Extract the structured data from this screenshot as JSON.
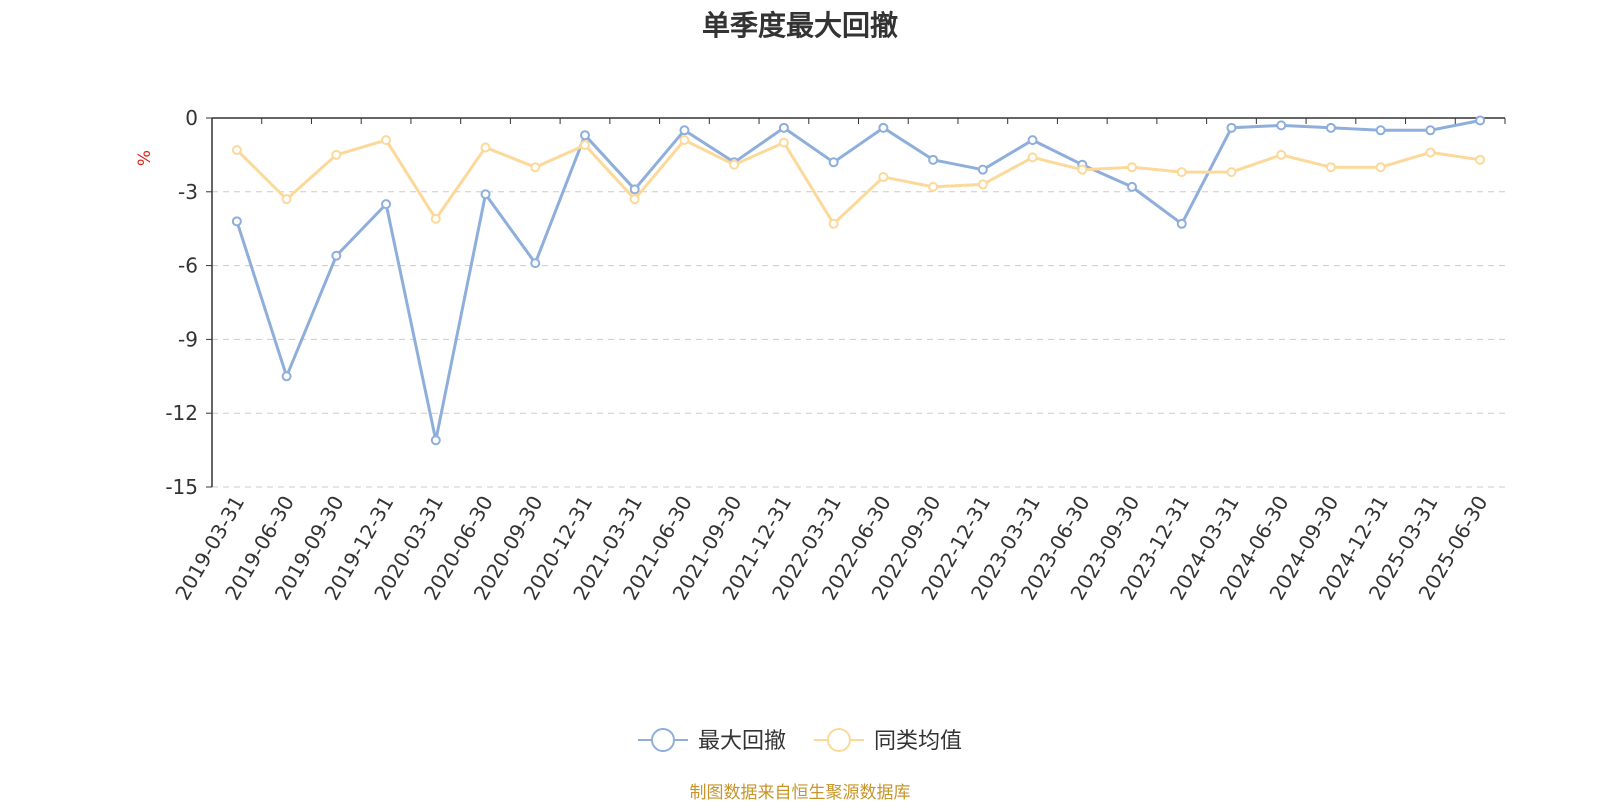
{
  "chart_data": {
    "type": "line",
    "title": "单季度最大回撤",
    "ylabel": "%",
    "ylim": [
      -15,
      0
    ],
    "yticks": [
      0,
      -3,
      -6,
      -9,
      -12,
      -15
    ],
    "grid": true,
    "legend_position": "bottom",
    "x": [
      "2019-03-31",
      "2019-06-30",
      "2019-09-30",
      "2019-12-31",
      "2020-03-31",
      "2020-06-30",
      "2020-09-30",
      "2020-12-31",
      "2021-03-31",
      "2021-06-30",
      "2021-09-30",
      "2021-12-31",
      "2022-03-31",
      "2022-06-30",
      "2022-09-30",
      "2022-12-31",
      "2023-03-31",
      "2023-06-30",
      "2023-09-30",
      "2023-12-31",
      "2024-03-31",
      "2024-06-30",
      "2024-09-30",
      "2024-12-31",
      "2025-03-31",
      "2025-06-30"
    ],
    "series": [
      {
        "name": "最大回撤",
        "color": "#8eaedb",
        "values": [
          -4.2,
          -10.5,
          -5.6,
          -3.5,
          -13.1,
          -3.1,
          -5.9,
          -0.7,
          -2.9,
          -0.5,
          -1.8,
          -0.4,
          -1.8,
          -0.4,
          -1.7,
          -2.1,
          -0.9,
          -1.9,
          -2.8,
          -4.3,
          -0.4,
          -0.3,
          -0.4,
          -0.5,
          -0.5,
          -0.1
        ]
      },
      {
        "name": "同类均值",
        "color": "#fcd99a",
        "values": [
          -1.3,
          -3.3,
          -1.5,
          -0.9,
          -4.1,
          -1.2,
          -2.0,
          -1.1,
          -3.3,
          -0.9,
          -1.9,
          -1.0,
          -4.3,
          -2.4,
          -2.8,
          -2.7,
          -1.6,
          -2.1,
          -2.0,
          -2.2,
          -2.2,
          -1.5,
          -2.0,
          -2.0,
          -1.4,
          -1.7
        ]
      }
    ],
    "source_note": "制图数据来自恒生聚源数据库"
  },
  "colors": {
    "axis": "#333333",
    "grid": "#cccccc",
    "ylabel": "#e0251b",
    "source_note": "#c8952a"
  }
}
